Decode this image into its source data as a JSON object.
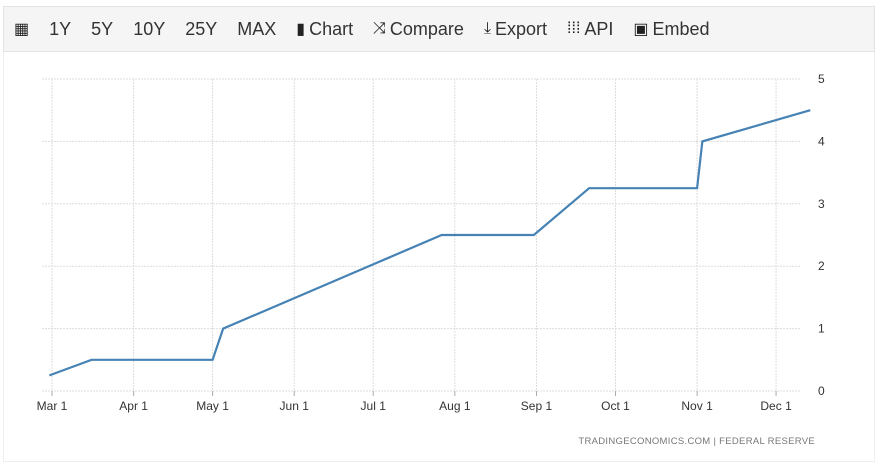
{
  "toolbar": {
    "items": [
      {
        "icon": "calendar-icon",
        "label": ""
      },
      {
        "label": "1Y"
      },
      {
        "label": "5Y"
      },
      {
        "label": "10Y"
      },
      {
        "label": "25Y"
      },
      {
        "label": "MAX"
      },
      {
        "icon": "bar-chart-icon",
        "label": "Chart"
      },
      {
        "icon": "shuffle-icon",
        "label": "Compare"
      },
      {
        "icon": "download-icon",
        "label": "Export"
      },
      {
        "icon": "grid-icon",
        "label": "API"
      },
      {
        "icon": "image-icon",
        "label": "Embed"
      }
    ]
  },
  "source": "TRADINGECONOMICS.COM  |  FEDERAL RESERVE",
  "chart_data": {
    "type": "line",
    "color": "#4682b4",
    "grid": true,
    "x_ticks": [
      "Mar 1",
      "Apr 1",
      "May 1",
      "Jun 1",
      "Jul 1",
      "Aug 1",
      "Sep 1",
      "Oct 1",
      "Nov 1",
      "Dec 1"
    ],
    "x_tick_dates": [
      "2022-03-01",
      "2022-04-01",
      "2022-05-01",
      "2022-06-01",
      "2022-07-01",
      "2022-08-01",
      "2022-09-01",
      "2022-10-01",
      "2022-11-01",
      "2022-12-01"
    ],
    "y_ticks": [
      "0",
      "1",
      "2",
      "3",
      "4",
      "5"
    ],
    "ylim": [
      0,
      5
    ],
    "y_axis_side": "right",
    "points": [
      {
        "x": "2022-02-28",
        "y": 0.25
      },
      {
        "x": "2022-03-16",
        "y": 0.5
      },
      {
        "x": "2022-05-01",
        "y": 0.5
      },
      {
        "x": "2022-05-05",
        "y": 1.0
      },
      {
        "x": "2022-07-27",
        "y": 2.5
      },
      {
        "x": "2022-08-31",
        "y": 2.5
      },
      {
        "x": "2022-09-21",
        "y": 3.25
      },
      {
        "x": "2022-11-01",
        "y": 3.25
      },
      {
        "x": "2022-11-03",
        "y": 4.0
      },
      {
        "x": "2022-12-14",
        "y": 4.5
      }
    ]
  }
}
